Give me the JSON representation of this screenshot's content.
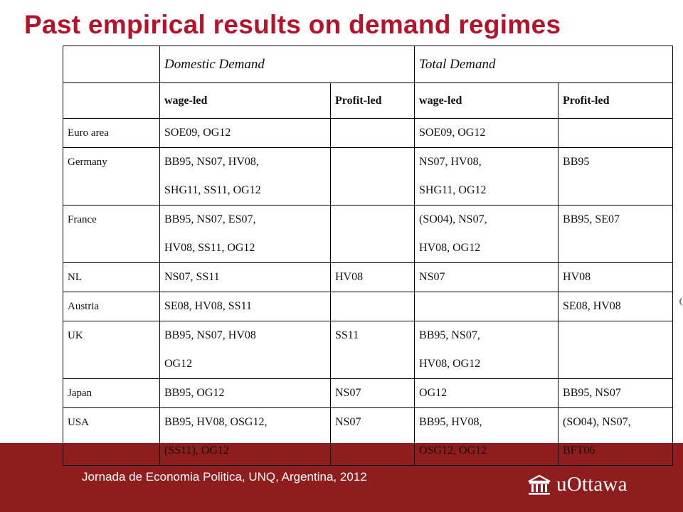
{
  "title": "Past empirical results on demand regimes",
  "table": {
    "group_headers": [
      "",
      "Domestic Demand",
      "",
      "Total Demand",
      ""
    ],
    "sub_headers": [
      "",
      "wage-led",
      "Profit-led",
      "wage-led",
      "Profit-led"
    ],
    "rows": [
      {
        "country": "Euro area",
        "dd_wage": [
          "SOE09, OG12"
        ],
        "dd_profit": [],
        "td_wage": [
          "SOE09, OG12"
        ],
        "td_profit": []
      },
      {
        "country": "Germany",
        "dd_wage": [
          "BB95, NS07, HV08,",
          "SHG11, SS11, OG12"
        ],
        "dd_profit": [],
        "td_wage": [
          "NS07, HV08,",
          "SHG11, OG12"
        ],
        "td_profit": [
          "BB95"
        ]
      },
      {
        "country": "France",
        "dd_wage": [
          "BB95, NS07, ES07,",
          "HV08, SS11, OG12"
        ],
        "dd_profit": [],
        "td_wage": [
          "(SO04), NS07,",
          "HV08, OG12"
        ],
        "td_profit": [
          "BB95, SE07"
        ]
      },
      {
        "country": "NL",
        "dd_wage": [
          "NS07, SS11"
        ],
        "dd_profit": [
          "HV08"
        ],
        "td_wage": [
          "NS07"
        ],
        "td_profit": [
          "HV08"
        ]
      },
      {
        "country": "Austria",
        "dd_wage": [
          "SE08, HV08, SS11"
        ],
        "dd_profit": [],
        "td_wage": [],
        "td_profit": [
          "SE08, HV08"
        ]
      },
      {
        "country": "UK",
        "dd_wage": [
          "BB95, NS07, HV08",
          "OG12"
        ],
        "dd_profit": [
          "SS11"
        ],
        "td_wage": [
          "BB95, NS07,",
          "HV08, OG12"
        ],
        "td_profit": []
      },
      {
        "country": "Japan",
        "dd_wage": [
          "BB95, OG12"
        ],
        "dd_profit": [
          "NS07"
        ],
        "td_wage": [
          "OG12"
        ],
        "td_profit": [
          "BB95, NS07"
        ]
      },
      {
        "country": "USA",
        "dd_wage": [
          "BB95, HV08, OSG12,",
          "(SS11), OG12"
        ],
        "dd_profit": [
          "NS07"
        ],
        "td_wage": [
          "BB95, HV08,",
          "OSG12, OG12"
        ],
        "td_profit": [
          "(SO04), NS07,",
          "BFT06"
        ]
      }
    ]
  },
  "footer": {
    "text": "Jornada de Economia Politica, UNQ, Argentina, 2012",
    "logo_text": "uOttawa",
    "logo_icon": "building-icon"
  },
  "colors": {
    "title": "#b5132b",
    "footer_band": "#8f1d1d"
  }
}
